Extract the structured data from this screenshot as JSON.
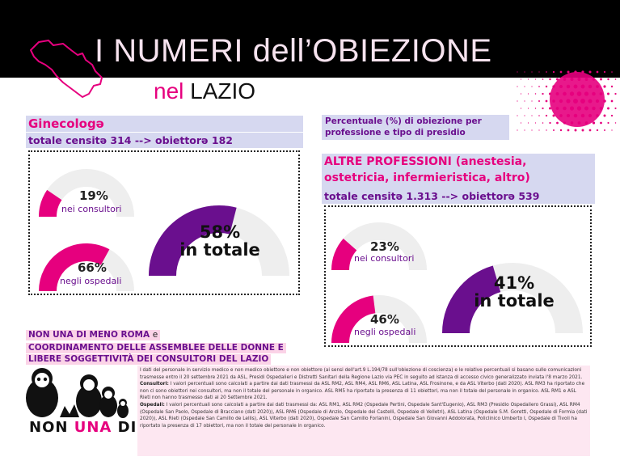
{
  "header": {
    "title": "I NUMERI dell’OBIEZIONE",
    "subtitle_part1": "nel",
    "subtitle_part2": "LAZIO"
  },
  "legend_note": "Percentuale (%) di obiezione per professione e tipo di presidio",
  "legend_note_line1": "Percentuale (%) di obiezione per",
  "legend_note_line2": "professione e tipo di presidio",
  "gyn": {
    "heading": "Ginecologə",
    "count_line": "totale censitə 314 --> obiettorə 182"
  },
  "other": {
    "heading_line1": "ALTRE PROFESSIONI (anestesia,",
    "heading_line2": "ostetricia, infermieristica, altro)",
    "count_line": "totale censitə 1.313 --> obiettorə 539"
  },
  "chart_data": [
    {
      "type": "gauge",
      "title": "Ginecologə",
      "categories": [
        "nei consultori",
        "negli ospedali",
        "in totale"
      ],
      "values": [
        19,
        66,
        58
      ],
      "value_labels": [
        "19%",
        "66%",
        "58%"
      ],
      "unit": "%",
      "ylim": [
        0,
        100
      ],
      "colors": [
        "#e6007e",
        "#e6007e",
        "#6a0f8e"
      ],
      "track_color": "#eeeeee"
    },
    {
      "type": "gauge",
      "title": "ALTRE PROFESSIONI (anestesia, ostetricia, infermieristica, altro)",
      "categories": [
        "nei consultori",
        "negli ospedali",
        "in totale"
      ],
      "values": [
        23,
        46,
        41
      ],
      "value_labels": [
        "23%",
        "46%",
        "41%"
      ],
      "unit": "%",
      "ylim": [
        0,
        100
      ],
      "colors": [
        "#e6007e",
        "#e6007e",
        "#6a0f8e"
      ],
      "track_color": "#eeeeee"
    }
  ],
  "gauge_text": {
    "big_suffix": "in totale"
  },
  "organizations": {
    "line1": "NON UNA DI MENO ROMA",
    "line1_suffix": "e",
    "line2": "COORDINAMENTO DELLE ASSEMBLEE DELLE DONNE E",
    "line3": "LIBERE SOGGETTIVITÀ DEI CONSULTORI DEL LAZIO"
  },
  "logo": {
    "word1": "NON",
    "word2": "UNA",
    "word3": "DI MENO"
  },
  "notes": {
    "intro": "I dati del personale in servizio medico e non medico obiettore e non obiettore (ai sensi dell'art.9 L.194/78 sull'obiezione di coscienza) e le relative percentuali si basano sulle comunicazioni trasmesse entro il 20 settembre 2021 da ASL, Presidi Ospedalieri e Distretti Sanitari della Regione Lazio via PEC in seguito ad istanza di accesso civico generalizzato inviata l'8 marzo 2021.",
    "consultori_label": "Consultori:",
    "consultori": "I valori percentuali sono calcolati a partire dai dati trasmessi da ASL RM2, ASL RM4, ASL RM6, ASL Latina, ASL Frosinone, e da ASL Viterbo (dati 2020). ASL RM3 ha riportato che non ci sono obiettori nei consultori, ma non il totale del personale in organico. ASL RM5 ha riportato la presenza di 11 obiettori, ma non il totale del personale in organico. ASL RM1 e ASL Rieti non hanno trasmesso dati al 20 Settembre 2021.",
    "ospedali_label": "Ospedali:",
    "ospedali": "I valori percentuali sono calcolati a partire dai dati trasmessi da: ASL RM1, ASL RM2 (Ospedale Pertini, Ospedale Sant'Eugenio), ASL RM3 (Presidio Ospedaliero Grassi), ASL RM4 (Ospedale San Paolo, Ospedale di Bracciano (dati 2020)), ASL RM6 (Ospedale di Anzio, Ospedale dei Castelli, Ospedale di Velletri), ASL Latina (Ospedale S.M. Goretti, Ospedale di Formia (dati 2020)), ASL Rieti (Ospedale San Camillo de Lellis), ASL Viterbo (dati 2020), Ospedale San Camillo Forlanini, Ospedale San Giovanni Addolorata, Policlinico Umberto I, Ospedale di Tivoli ha riportato la presenza di 17 obiettori, ma non il totale del personale in organico."
  },
  "colors": {
    "magenta": "#e6007e",
    "violet": "#6a0f8e",
    "band": "#d6d8f0",
    "pink_band": "#fbd3e7",
    "header_bg": "#000000"
  }
}
